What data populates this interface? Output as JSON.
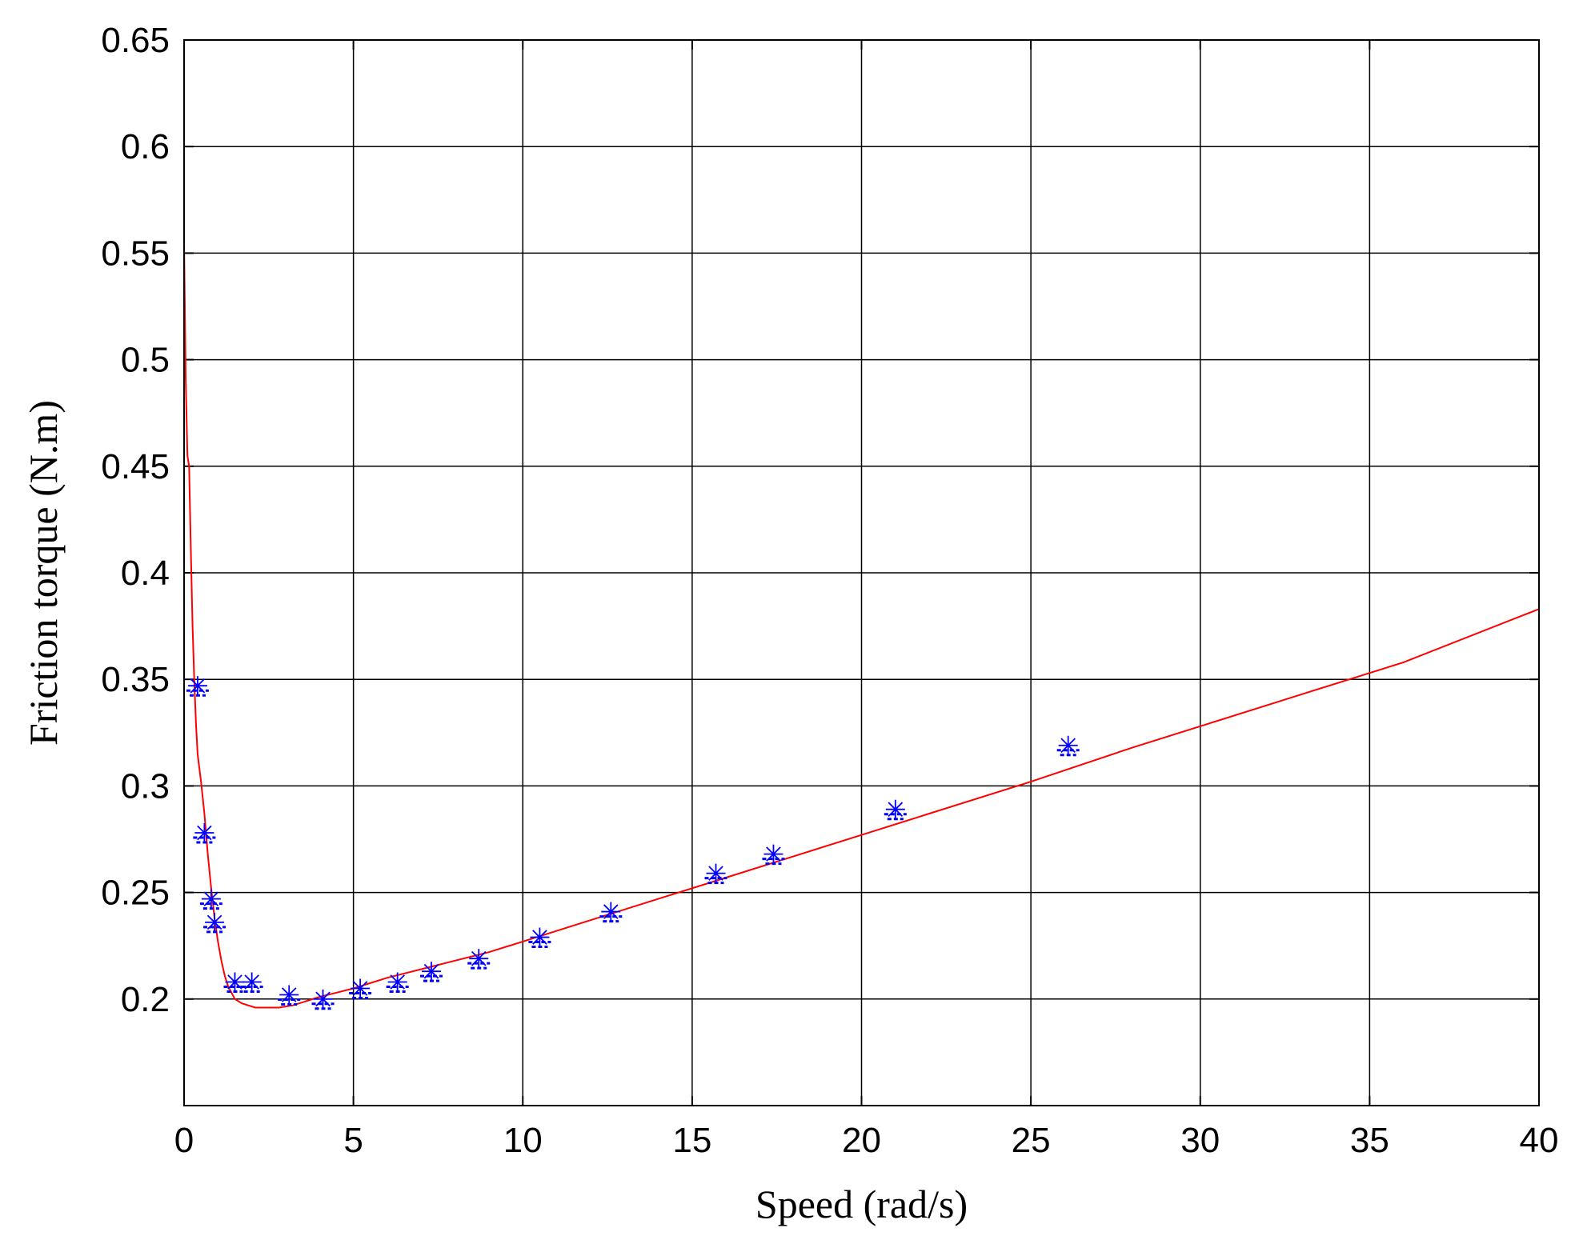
{
  "chart_data": {
    "type": "line",
    "title": "",
    "xlabel": "Speed (rad/s)",
    "ylabel": "Friction torque (N.m)",
    "xlim": [
      0,
      40
    ],
    "ylim": [
      0.15,
      0.65
    ],
    "xticks": [
      0,
      5,
      10,
      15,
      20,
      25,
      30,
      35,
      40
    ],
    "yticks": [
      0.2,
      0.25,
      0.3,
      0.35,
      0.4,
      0.45,
      0.5,
      0.55,
      0.6,
      0.65
    ],
    "xtick_labels": [
      "0",
      "5",
      "10",
      "15",
      "20",
      "25",
      "30",
      "35",
      "40"
    ],
    "ytick_labels": [
      "0.2",
      "0.25",
      "0.3",
      "0.35",
      "0.4",
      "0.45",
      "0.5",
      "0.55",
      "0.6",
      "0.65"
    ],
    "grid": true,
    "series": [
      {
        "type": "line",
        "color": "#ff0000",
        "x": [
          0,
          0.05,
          0.1,
          0.15,
          0.2,
          0.25,
          0.3,
          0.35,
          0.4,
          0.5,
          0.6,
          0.7,
          0.8,
          0.9,
          1.0,
          1.1,
          1.2,
          1.3,
          1.4,
          1.5,
          1.7,
          1.9,
          2.1,
          2.4,
          2.8,
          3.2,
          3.6,
          4.0,
          4.5,
          5,
          6,
          7,
          8,
          9,
          10,
          12,
          14,
          16,
          18,
          20,
          22,
          25,
          28,
          30,
          33,
          36,
          40
        ],
        "y": [
          0.555,
          0.49,
          0.455,
          0.45,
          0.41,
          0.375,
          0.35,
          0.33,
          0.315,
          0.302,
          0.287,
          0.268,
          0.252,
          0.238,
          0.227,
          0.218,
          0.211,
          0.206,
          0.203,
          0.2,
          0.198,
          0.197,
          0.196,
          0.196,
          0.196,
          0.197,
          0.199,
          0.201,
          0.203,
          0.205,
          0.21,
          0.214,
          0.218,
          0.222,
          0.227,
          0.237,
          0.247,
          0.257,
          0.267,
          0.277,
          0.287,
          0.302,
          0.318,
          0.328,
          0.343,
          0.358,
          0.383
        ]
      },
      {
        "type": "scatter",
        "color": "#0000ff",
        "x": [
          0.4,
          0.6,
          0.8,
          0.9,
          1.5,
          2.0,
          3.1,
          4.1,
          5.2,
          6.3,
          7.3,
          8.7,
          10.5,
          12.6,
          15.7,
          17.4,
          21.0,
          26.1
        ],
        "y": [
          0.347,
          0.278,
          0.247,
          0.236,
          0.208,
          0.208,
          0.202,
          0.2,
          0.205,
          0.208,
          0.213,
          0.219,
          0.229,
          0.241,
          0.259,
          0.268,
          0.289,
          0.319
        ]
      }
    ]
  }
}
